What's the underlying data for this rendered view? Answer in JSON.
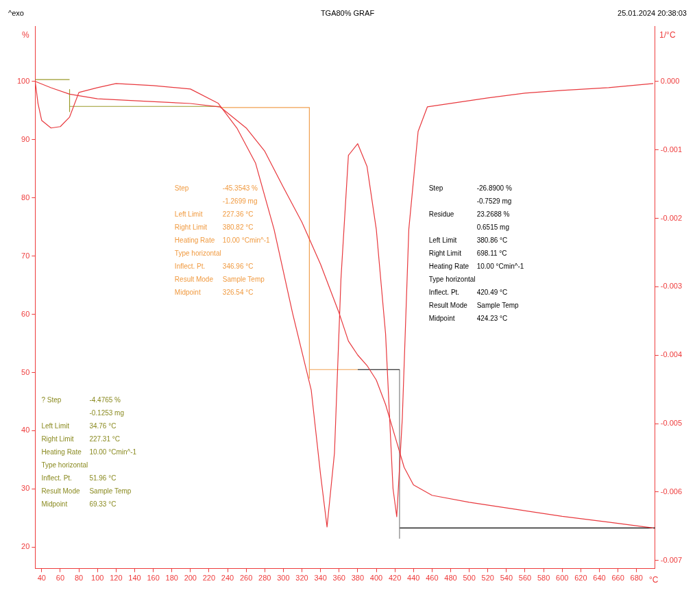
{
  "chart_data": {
    "type": "line",
    "title": "TGA80% GRAF",
    "xlabel": "°C",
    "ylabel": "%",
    "y2label": "1/°C",
    "annotations": [
      "^exo",
      "25.01.2024 20:38:03",
      "Step\t-45.3543 %\n\t-1.2699 mg\nLeft Limit\t227.36 °C\nRight Limit\t380.82 °C\nHeating Rate\t10.00 °Cmin^-1\nType horizontal\nInflect. Pt.\t346.96 °C\nResult Mode\tSample Temp\nMidpoint\t326.54 °C",
      "Step\t-26.8900 %\n\t-0.7529 mg\nResidue\t23.2688 %\n\t0.6515 mg\nLeft Limit\t380.86 °C\nRight Limit\t698.11 °C\nHeating Rate\t10.00 °Cmin^-1\nType horizontal\nInflect. Pt.\t420.49 °C\nResult Mode\tSample Temp\nMidpoint\t424.23 °C",
      "? Step\t-4.4765 %\n\t-0.1253 mg\nLeft Limit\t34.76 °C\nRight Limit\t227.31 °C\nHeating Rate\t10.00 °Cmin^-1\nType horizontal\nInflect. Pt.\t51.96 °C\nResult Mode\tSample Temp\nMidpoint\t69.33 °C"
    ],
    "xlim": [
      33,
      700
    ],
    "xticks": [
      40,
      60,
      80,
      100,
      120,
      140,
      160,
      180,
      200,
      220,
      240,
      260,
      280,
      300,
      320,
      340,
      360,
      380,
      400,
      420,
      440,
      460,
      480,
      500,
      520,
      540,
      560,
      580,
      600,
      620,
      640,
      660,
      680
    ],
    "ylim": [
      16.3,
      109.5
    ],
    "yticks": [
      20,
      30,
      40,
      50,
      60,
      70,
      80,
      90,
      100
    ],
    "y2lim": [
      -0.00712,
      0.00081
    ],
    "y2ticks": [
      {
        "value": 0,
        "label": "0.000"
      },
      {
        "value": -0.001,
        "label": "-0.001"
      },
      {
        "value": -0.002,
        "label": "-0.002"
      },
      {
        "value": -0.003,
        "label": "-0.003"
      },
      {
        "value": -0.004,
        "label": "-0.004"
      },
      {
        "value": -0.005,
        "label": "-0.005"
      },
      {
        "value": -0.006,
        "label": "-0.006"
      },
      {
        "value": -0.007,
        "label": "-0.007"
      }
    ],
    "grid": false,
    "legend": false,
    "marker": "none",
    "line_style": "solid",
    "series": [
      {
        "color": "#e8383d",
        "x": [
          33,
          50,
          70,
          100,
          150,
          200,
          232,
          260,
          280,
          300,
          320,
          340,
          360,
          370,
          380,
          390,
          400,
          410,
          420,
          430,
          440,
          460,
          500,
          550,
          600,
          650,
          698
        ],
        "values": [
          100,
          98.9,
          97.8,
          97.0,
          96.6,
          96.2,
          95.6,
          92,
          88,
          81.8,
          75.8,
          68.6,
          60.2,
          55.4,
          53,
          51.2,
          48.7,
          44.5,
          39.1,
          33.7,
          30.7,
          28.9,
          27.7,
          26.5,
          25.3,
          24.3,
          23.3
        ]
      },
      {
        "color": "#e8383d",
        "axis": "y2",
        "x": [
          33,
          36,
          40,
          50,
          60,
          70,
          80,
          100,
          120,
          160,
          200,
          230,
          250,
          270,
          290,
          310,
          330,
          340,
          347,
          355,
          362,
          370,
          380,
          390,
          400,
          410,
          418,
          422,
          428,
          435,
          445,
          455,
          480,
          520,
          560,
          600,
          650,
          698
        ],
        "values": [
          0,
          -0.00032,
          -0.00057,
          -0.00068,
          -0.00066,
          -0.00052,
          -0.00016,
          -9e-05,
          -3e-05,
          -6e-05,
          -0.00011,
          -0.00032,
          -0.00068,
          -0.00119,
          -0.00216,
          -0.00339,
          -0.00451,
          -0.00574,
          -0.00651,
          -0.00543,
          -0.00288,
          -0.00108,
          -0.00091,
          -0.00124,
          -0.00216,
          -0.00369,
          -0.00595,
          -0.00636,
          -0.00492,
          -0.00216,
          -0.00073,
          -0.00037,
          -0.00032,
          -0.00024,
          -0.00017,
          -0.00013,
          -9e-05,
          -3e-05
        ]
      },
      {
        "color": "#9a9a2a",
        "x": [
          33,
          70
        ],
        "values": [
          100.3,
          100.3
        ]
      },
      {
        "color": "#9a9a2a",
        "x": [
          70,
          70
        ],
        "values": [
          98.6,
          94.8
        ]
      },
      {
        "color": "#9a9a2a",
        "x": [
          70,
          232
        ],
        "values": [
          95.7,
          95.7
        ]
      },
      {
        "color": "#f0a050",
        "x": [
          232,
          328
        ],
        "values": [
          95.5,
          95.5
        ]
      },
      {
        "color": "#f0a050",
        "x": [
          328,
          328
        ],
        "values": [
          95.5,
          49
        ]
      },
      {
        "color": "#f0a050",
        "x": [
          328,
          380
        ],
        "values": [
          50.5,
          50.5
        ]
      },
      {
        "color": "#000000",
        "x": [
          380,
          425
        ],
        "values": [
          50.5,
          50.5
        ]
      },
      {
        "color": "#808080",
        "x": [
          425,
          425
        ],
        "values": [
          50.5,
          21.5
        ]
      },
      {
        "color": "#000000",
        "x": [
          425,
          700
        ],
        "values": [
          23.3,
          23.3
        ]
      }
    ]
  }
}
